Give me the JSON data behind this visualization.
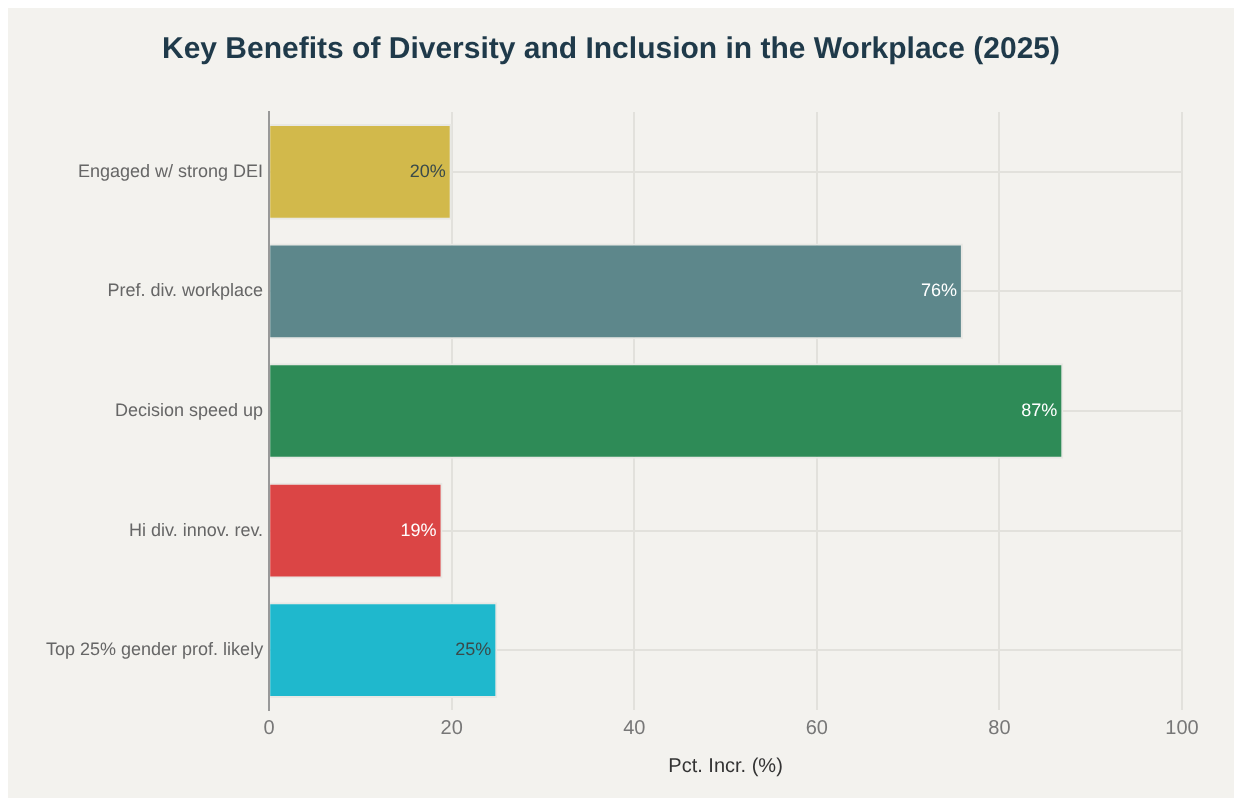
{
  "chart_data": {
    "type": "bar",
    "orientation": "horizontal",
    "title": "Key Benefits of Diversity and Inclusion in the Workplace (2025)",
    "xlabel": "Pct. Incr. (%)",
    "categories": [
      "Engaged w/ strong DEI",
      "Pref. div. workplace",
      "Decision speed up",
      "Hi div. innov. rev.",
      "Top 25% gender prof. likely"
    ],
    "values": [
      20,
      76,
      87,
      19,
      25
    ],
    "colors": [
      "#d2b94b",
      "#5d878b",
      "#2e8b57",
      "#db4545",
      "#1fb8cd"
    ],
    "value_labels": [
      "20%",
      "76%",
      "87%",
      "19%",
      "25%"
    ],
    "xlim": [
      0,
      100
    ],
    "xticks": [
      0,
      20,
      40,
      60,
      80,
      100
    ],
    "grid": true,
    "legend": false
  }
}
